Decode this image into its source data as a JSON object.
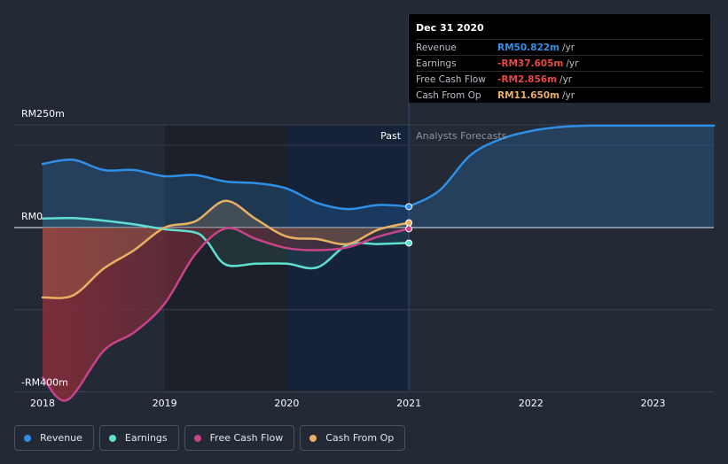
{
  "tooltip": {
    "date": "Dec 31 2020",
    "rows": [
      {
        "label": "Revenue",
        "value": "RM50.822m",
        "unit": "/yr",
        "color": "#2f8fe6"
      },
      {
        "label": "Earnings",
        "value": "-RM37.605m",
        "unit": "/yr",
        "color": "#e64747"
      },
      {
        "label": "Free Cash Flow",
        "value": "-RM2.856m",
        "unit": "/yr",
        "color": "#e64747"
      },
      {
        "label": "Cash From Op",
        "value": "RM11.650m",
        "unit": "/yr",
        "color": "#e9b064"
      }
    ]
  },
  "legend": [
    {
      "label": "Revenue",
      "color": "#2f8fe6"
    },
    {
      "label": "Earnings",
      "color": "#5fe0d0"
    },
    {
      "label": "Free Cash Flow",
      "color": "#c8438a"
    },
    {
      "label": "Cash From Op",
      "color": "#e9b064"
    }
  ],
  "chart_data": {
    "type": "line",
    "y_tick_labels": [
      "RM250m",
      "RM0",
      "-RM400m"
    ],
    "x_tick_labels": [
      "2018",
      "2019",
      "2020",
      "2021",
      "2022",
      "2023"
    ],
    "region_labels": {
      "past": "Past",
      "forecast": "Analysts Forecasts"
    },
    "ylim": [
      -400,
      250
    ],
    "xlim": [
      2017.8,
      2023.5
    ],
    "past_end": 2021.0,
    "grid": true,
    "series": [
      {
        "name": "Revenue",
        "color": "#2f8fe6",
        "points": [
          [
            2018.0,
            155
          ],
          [
            2018.25,
            165
          ],
          [
            2018.5,
            140
          ],
          [
            2018.75,
            140
          ],
          [
            2019.0,
            125
          ],
          [
            2019.25,
            128
          ],
          [
            2019.5,
            112
          ],
          [
            2019.75,
            108
          ],
          [
            2020.0,
            95
          ],
          [
            2020.25,
            60
          ],
          [
            2020.5,
            45
          ],
          [
            2020.75,
            55
          ],
          [
            2021.0,
            51
          ],
          [
            2021.25,
            90
          ],
          [
            2021.5,
            175
          ],
          [
            2021.75,
            215
          ],
          [
            2022.0,
            235
          ],
          [
            2022.25,
            245
          ],
          [
            2022.5,
            248
          ],
          [
            2023.0,
            248
          ],
          [
            2023.5,
            248
          ]
        ]
      },
      {
        "name": "Earnings",
        "color": "#5fe0d0",
        "points": [
          [
            2018.0,
            22
          ],
          [
            2018.25,
            23
          ],
          [
            2018.5,
            17
          ],
          [
            2018.75,
            8
          ],
          [
            2019.0,
            -4
          ],
          [
            2019.25,
            -12
          ],
          [
            2019.35,
            -35
          ],
          [
            2019.5,
            -90
          ],
          [
            2019.75,
            -88
          ],
          [
            2020.0,
            -88
          ],
          [
            2020.25,
            -97
          ],
          [
            2020.5,
            -42
          ],
          [
            2020.75,
            -40
          ],
          [
            2021.0,
            -37.6
          ]
        ]
      },
      {
        "name": "Free Cash Flow",
        "color": "#c8438a",
        "points": [
          [
            2018.0,
            -365
          ],
          [
            2018.2,
            -420
          ],
          [
            2018.5,
            -300
          ],
          [
            2018.75,
            -255
          ],
          [
            2019.0,
            -185
          ],
          [
            2019.25,
            -65
          ],
          [
            2019.5,
            -2
          ],
          [
            2019.75,
            -28
          ],
          [
            2020.0,
            -50
          ],
          [
            2020.25,
            -55
          ],
          [
            2020.5,
            -48
          ],
          [
            2020.75,
            -22
          ],
          [
            2021.0,
            -2.9
          ]
        ]
      },
      {
        "name": "Cash From Op",
        "color": "#e9b064",
        "points": [
          [
            2018.0,
            -170
          ],
          [
            2018.25,
            -165
          ],
          [
            2018.5,
            -100
          ],
          [
            2018.75,
            -55
          ],
          [
            2019.0,
            0
          ],
          [
            2019.25,
            15
          ],
          [
            2019.5,
            65
          ],
          [
            2019.75,
            20
          ],
          [
            2020.0,
            -22
          ],
          [
            2020.25,
            -28
          ],
          [
            2020.5,
            -40
          ],
          [
            2020.75,
            -5
          ],
          [
            2021.0,
            11.65
          ]
        ]
      }
    ]
  }
}
